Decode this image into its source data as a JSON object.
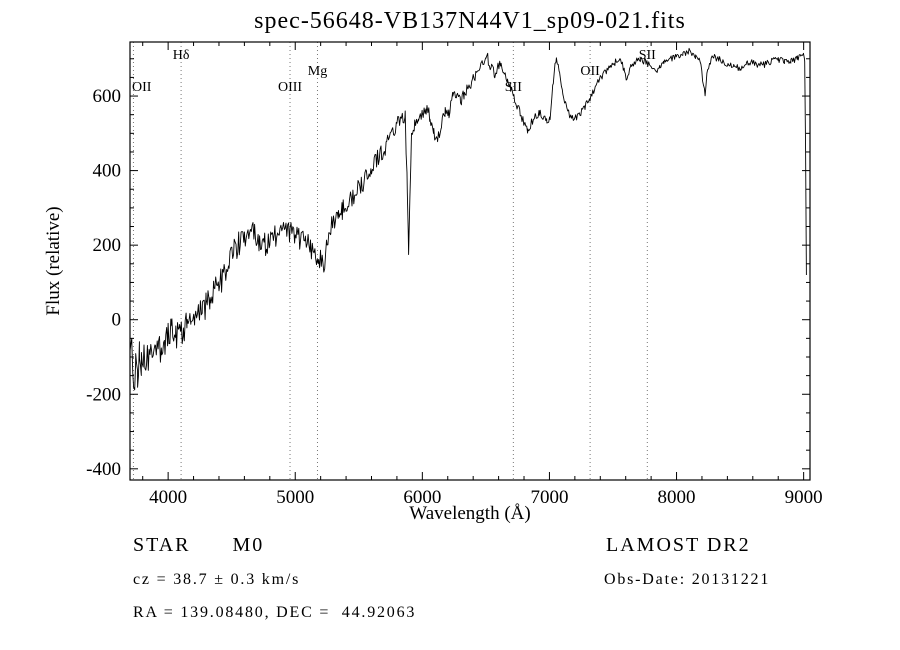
{
  "chart_data": {
    "type": "line",
    "title": "spec-56648-VB137N44V1_sp09-021.fits",
    "xlabel": "Wavelength (Å)",
    "ylabel": "Flux (relative)",
    "xlim": [
      3700,
      9050
    ],
    "ylim": [
      -430,
      745
    ],
    "x_major_ticks": [
      4000,
      5000,
      6000,
      7000,
      8000,
      9000
    ],
    "x_minor_step": 200,
    "y_major_ticks": [
      -400,
      -200,
      0,
      200,
      400,
      600
    ],
    "y_minor_step": 50,
    "grid": false,
    "legend": "none",
    "line_color": "#000000",
    "spectral_line_color": "#777777",
    "noise": {
      "base_amplitude": 45,
      "slope_per_angstrom": 0.011,
      "min_amplitude": 9,
      "sample_step": 7
    },
    "spectral_lines": [
      {
        "label": "OII",
        "wavelength": 3727,
        "level": 2
      },
      {
        "label": "Hδ",
        "wavelength": 4102,
        "level": 0
      },
      {
        "label": "OIII",
        "wavelength": 4959,
        "level": 2
      },
      {
        "label": "Mg",
        "wavelength": 5175,
        "level": 1
      },
      {
        "label": "SII",
        "wavelength": 6716,
        "level": 2
      },
      {
        "label": "OII",
        "wavelength": 7320,
        "level": 1
      },
      {
        "label": "SII",
        "wavelength": 7770,
        "level": 0
      }
    ],
    "series": [
      {
        "name": "spectrum",
        "points": [
          [
            3700,
            -120
          ],
          [
            3715,
            -40
          ],
          [
            3730,
            -220
          ],
          [
            3745,
            -90
          ],
          [
            3760,
            -160
          ],
          [
            3775,
            -70
          ],
          [
            3790,
            -130
          ],
          [
            3810,
            -100
          ],
          [
            3830,
            -120
          ],
          [
            3850,
            -90
          ],
          [
            3875,
            -110
          ],
          [
            3900,
            -80
          ],
          [
            3925,
            -95
          ],
          [
            3950,
            -60
          ],
          [
            3975,
            -75
          ],
          [
            4000,
            -50
          ],
          [
            4030,
            -20
          ],
          [
            4060,
            -45
          ],
          [
            4090,
            -25
          ],
          [
            4120,
            -35
          ],
          [
            4150,
            -10
          ],
          [
            4180,
            -20
          ],
          [
            4210,
            5
          ],
          [
            4240,
            15
          ],
          [
            4270,
            25
          ],
          [
            4300,
            35
          ],
          [
            4330,
            55
          ],
          [
            4360,
            70
          ],
          [
            4400,
            95
          ],
          [
            4440,
            125
          ],
          [
            4480,
            155
          ],
          [
            4520,
            180
          ],
          [
            4560,
            205
          ],
          [
            4600,
            225
          ],
          [
            4640,
            240
          ],
          [
            4680,
            230
          ],
          [
            4720,
            210
          ],
          [
            4760,
            200
          ],
          [
            4800,
            215
          ],
          [
            4840,
            225
          ],
          [
            4880,
            235
          ],
          [
            4920,
            240
          ],
          [
            4960,
            235
          ],
          [
            5000,
            225
          ],
          [
            5040,
            215
          ],
          [
            5080,
            210
          ],
          [
            5120,
            195
          ],
          [
            5160,
            170
          ],
          [
            5185,
            140
          ],
          [
            5205,
            170
          ],
          [
            5225,
            135
          ],
          [
            5250,
            200
          ],
          [
            5280,
            245
          ],
          [
            5310,
            265
          ],
          [
            5340,
            285
          ],
          [
            5370,
            295
          ],
          [
            5400,
            310
          ],
          [
            5440,
            325
          ],
          [
            5480,
            345
          ],
          [
            5520,
            360
          ],
          [
            5560,
            385
          ],
          [
            5600,
            405
          ],
          [
            5640,
            430
          ],
          [
            5680,
            450
          ],
          [
            5720,
            470
          ],
          [
            5760,
            495
          ],
          [
            5800,
            520
          ],
          [
            5835,
            545
          ],
          [
            5865,
            540
          ],
          [
            5882,
            340
          ],
          [
            5892,
            185
          ],
          [
            5902,
            340
          ],
          [
            5915,
            500
          ],
          [
            5940,
            530
          ],
          [
            5970,
            540
          ],
          [
            6000,
            550
          ],
          [
            6030,
            560
          ],
          [
            6060,
            545
          ],
          [
            6090,
            505
          ],
          [
            6120,
            480
          ],
          [
            6150,
            525
          ],
          [
            6180,
            565
          ],
          [
            6210,
            555
          ],
          [
            6240,
            600
          ],
          [
            6270,
            610
          ],
          [
            6300,
            580
          ],
          [
            6330,
            605
          ],
          [
            6360,
            625
          ],
          [
            6400,
            645
          ],
          [
            6440,
            665
          ],
          [
            6470,
            685
          ],
          [
            6500,
            715
          ],
          [
            6520,
            695
          ],
          [
            6545,
            675
          ],
          [
            6570,
            660
          ],
          [
            6595,
            680
          ],
          [
            6620,
            685
          ],
          [
            6645,
            665
          ],
          [
            6670,
            645
          ],
          [
            6695,
            620
          ],
          [
            6720,
            595
          ],
          [
            6745,
            575
          ],
          [
            6770,
            555
          ],
          [
            6800,
            525
          ],
          [
            6830,
            505
          ],
          [
            6860,
            530
          ],
          [
            6890,
            545
          ],
          [
            6920,
            555
          ],
          [
            6950,
            545
          ],
          [
            6980,
            530
          ],
          [
            7005,
            545
          ],
          [
            7030,
            640
          ],
          [
            7055,
            710
          ],
          [
            7080,
            655
          ],
          [
            7105,
            605
          ],
          [
            7130,
            575
          ],
          [
            7160,
            548
          ],
          [
            7200,
            540
          ],
          [
            7240,
            552
          ],
          [
            7280,
            572
          ],
          [
            7320,
            592
          ],
          [
            7360,
            622
          ],
          [
            7400,
            648
          ],
          [
            7440,
            665
          ],
          [
            7480,
            680
          ],
          [
            7520,
            692
          ],
          [
            7560,
            698
          ],
          [
            7590,
            665
          ],
          [
            7610,
            645
          ],
          [
            7640,
            678
          ],
          [
            7680,
            695
          ],
          [
            7720,
            700
          ],
          [
            7760,
            690
          ],
          [
            7800,
            682
          ],
          [
            7840,
            668
          ],
          [
            7870,
            680
          ],
          [
            7900,
            694
          ],
          [
            7950,
            700
          ],
          [
            8000,
            706
          ],
          [
            8050,
            714
          ],
          [
            8100,
            720
          ],
          [
            8150,
            708
          ],
          [
            8185,
            698
          ],
          [
            8205,
            645
          ],
          [
            8225,
            605
          ],
          [
            8245,
            675
          ],
          [
            8285,
            705
          ],
          [
            8325,
            700
          ],
          [
            8365,
            692
          ],
          [
            8405,
            686
          ],
          [
            8450,
            680
          ],
          [
            8500,
            676
          ],
          [
            8550,
            686
          ],
          [
            8600,
            690
          ],
          [
            8650,
            682
          ],
          [
            8700,
            686
          ],
          [
            8750,
            694
          ],
          [
            8800,
            700
          ],
          [
            8850,
            692
          ],
          [
            8900,
            696
          ],
          [
            8950,
            700
          ],
          [
            9000,
            706
          ],
          [
            9008,
            695
          ],
          [
            9015,
            450
          ],
          [
            9022,
            120
          ]
        ]
      }
    ]
  },
  "annotations": {
    "class_label": "STAR      M0",
    "survey": "LAMOST DR2",
    "cz": "cz = 38.7 ± 0.3 km/s",
    "obs_date": "Obs-Date: 20131221",
    "coords": "RA = 139.08480, DEC =  44.92063"
  }
}
